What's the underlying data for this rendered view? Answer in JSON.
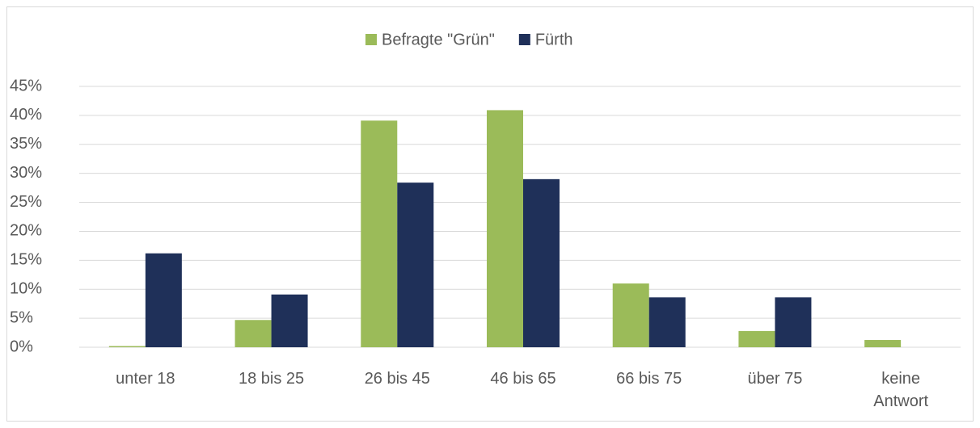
{
  "chart_data": {
    "type": "bar",
    "categories": [
      "unter 18",
      "18 bis 25",
      "26 bis 45",
      "46 bis 65",
      "66 bis 75",
      "über 75",
      "keine Antwort"
    ],
    "series": [
      {
        "name": "Befragte \"Grün\"",
        "color": "#9bbb59",
        "values": [
          0.2,
          4.7,
          39.1,
          40.9,
          11.0,
          2.8,
          1.25
        ]
      },
      {
        "name": "Fürth",
        "color": "#1f3059",
        "values": [
          16.2,
          9.1,
          28.4,
          29.0,
          8.6,
          8.6,
          0
        ]
      }
    ],
    "ylim": [
      0,
      45
    ],
    "yticks": [
      {
        "value": 0,
        "label": "0%"
      },
      {
        "value": 5,
        "label": "5%"
      },
      {
        "value": 10,
        "label": "10%"
      },
      {
        "value": 15,
        "label": "15%"
      },
      {
        "value": 20,
        "label": "20%"
      },
      {
        "value": 25,
        "label": "25%"
      },
      {
        "value": 30,
        "label": "30%"
      },
      {
        "value": 35,
        "label": "35%"
      },
      {
        "value": 40,
        "label": "40%"
      },
      {
        "value": 45,
        "label": "45%"
      }
    ],
    "grid": true,
    "legend": "top"
  }
}
